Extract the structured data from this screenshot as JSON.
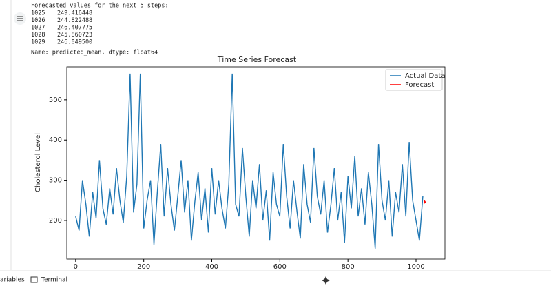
{
  "output": {
    "header": "Forecasted values for the next 5 steps:",
    "footer": "Name: predicted_mean, dtype: float64"
  },
  "chart_data": {
    "type": "line",
    "title": "Time Series Forecast",
    "y_label": "Cholesterol Level",
    "xlim": [
      -26,
      1085
    ],
    "ylim": [
      104,
      582
    ],
    "xticks": [
      0,
      200,
      400,
      600,
      800,
      1000
    ],
    "yticks": [
      200,
      300,
      400,
      500
    ],
    "legend": "upper right",
    "series": [
      {
        "name": "Actual Data",
        "color": "#1f77b4",
        "x": [
          0,
          10,
          20,
          30,
          40,
          50,
          60,
          70,
          80,
          90,
          100,
          110,
          120,
          130,
          140,
          150,
          160,
          170,
          180,
          190,
          200,
          210,
          220,
          230,
          240,
          250,
          260,
          270,
          280,
          290,
          300,
          310,
          320,
          330,
          340,
          350,
          360,
          370,
          380,
          390,
          400,
          410,
          420,
          430,
          440,
          450,
          460,
          470,
          480,
          490,
          500,
          510,
          520,
          530,
          540,
          550,
          560,
          570,
          580,
          590,
          600,
          610,
          620,
          630,
          640,
          650,
          660,
          670,
          680,
          690,
          700,
          710,
          720,
          730,
          740,
          750,
          760,
          770,
          780,
          790,
          800,
          810,
          820,
          830,
          840,
          850,
          860,
          870,
          880,
          890,
          900,
          910,
          920,
          930,
          940,
          950,
          960,
          970,
          980,
          990,
          1000,
          1010,
          1020
        ],
        "values": [
          210,
          175,
          300,
          240,
          160,
          270,
          205,
          350,
          230,
          190,
          280,
          215,
          330,
          250,
          195,
          310,
          565,
          220,
          290,
          565,
          180,
          250,
          300,
          140,
          270,
          390,
          210,
          330,
          240,
          175,
          260,
          350,
          220,
          300,
          150,
          245,
          320,
          200,
          280,
          170,
          330,
          215,
          300,
          230,
          180,
          290,
          565,
          240,
          210,
          380,
          260,
          160,
          300,
          230,
          340,
          200,
          275,
          150,
          320,
          240,
          210,
          390,
          260,
          180,
          300,
          225,
          155,
          340,
          240,
          195,
          380,
          260,
          215,
          300,
          170,
          240,
          330,
          200,
          270,
          145,
          310,
          230,
          360,
          210,
          280,
          190,
          320,
          240,
          130,
          390,
          250,
          200,
          300,
          160,
          270,
          220,
          340,
          210,
          395,
          250,
          200,
          150,
          260
        ]
      },
      {
        "name": "Forecast",
        "color": "red",
        "x": [
          1025,
          1026,
          1027,
          1028,
          1029
        ],
        "values": [
          249.416448,
          244.822488,
          246.407775,
          245.860723,
          246.0495
        ],
        "value_labels": [
          "249.416448",
          "244.822488",
          "246.407775",
          "245.860723",
          "246.049500"
        ]
      }
    ]
  },
  "toolbar": {
    "variables": "ariables",
    "terminal": "Terminal"
  }
}
